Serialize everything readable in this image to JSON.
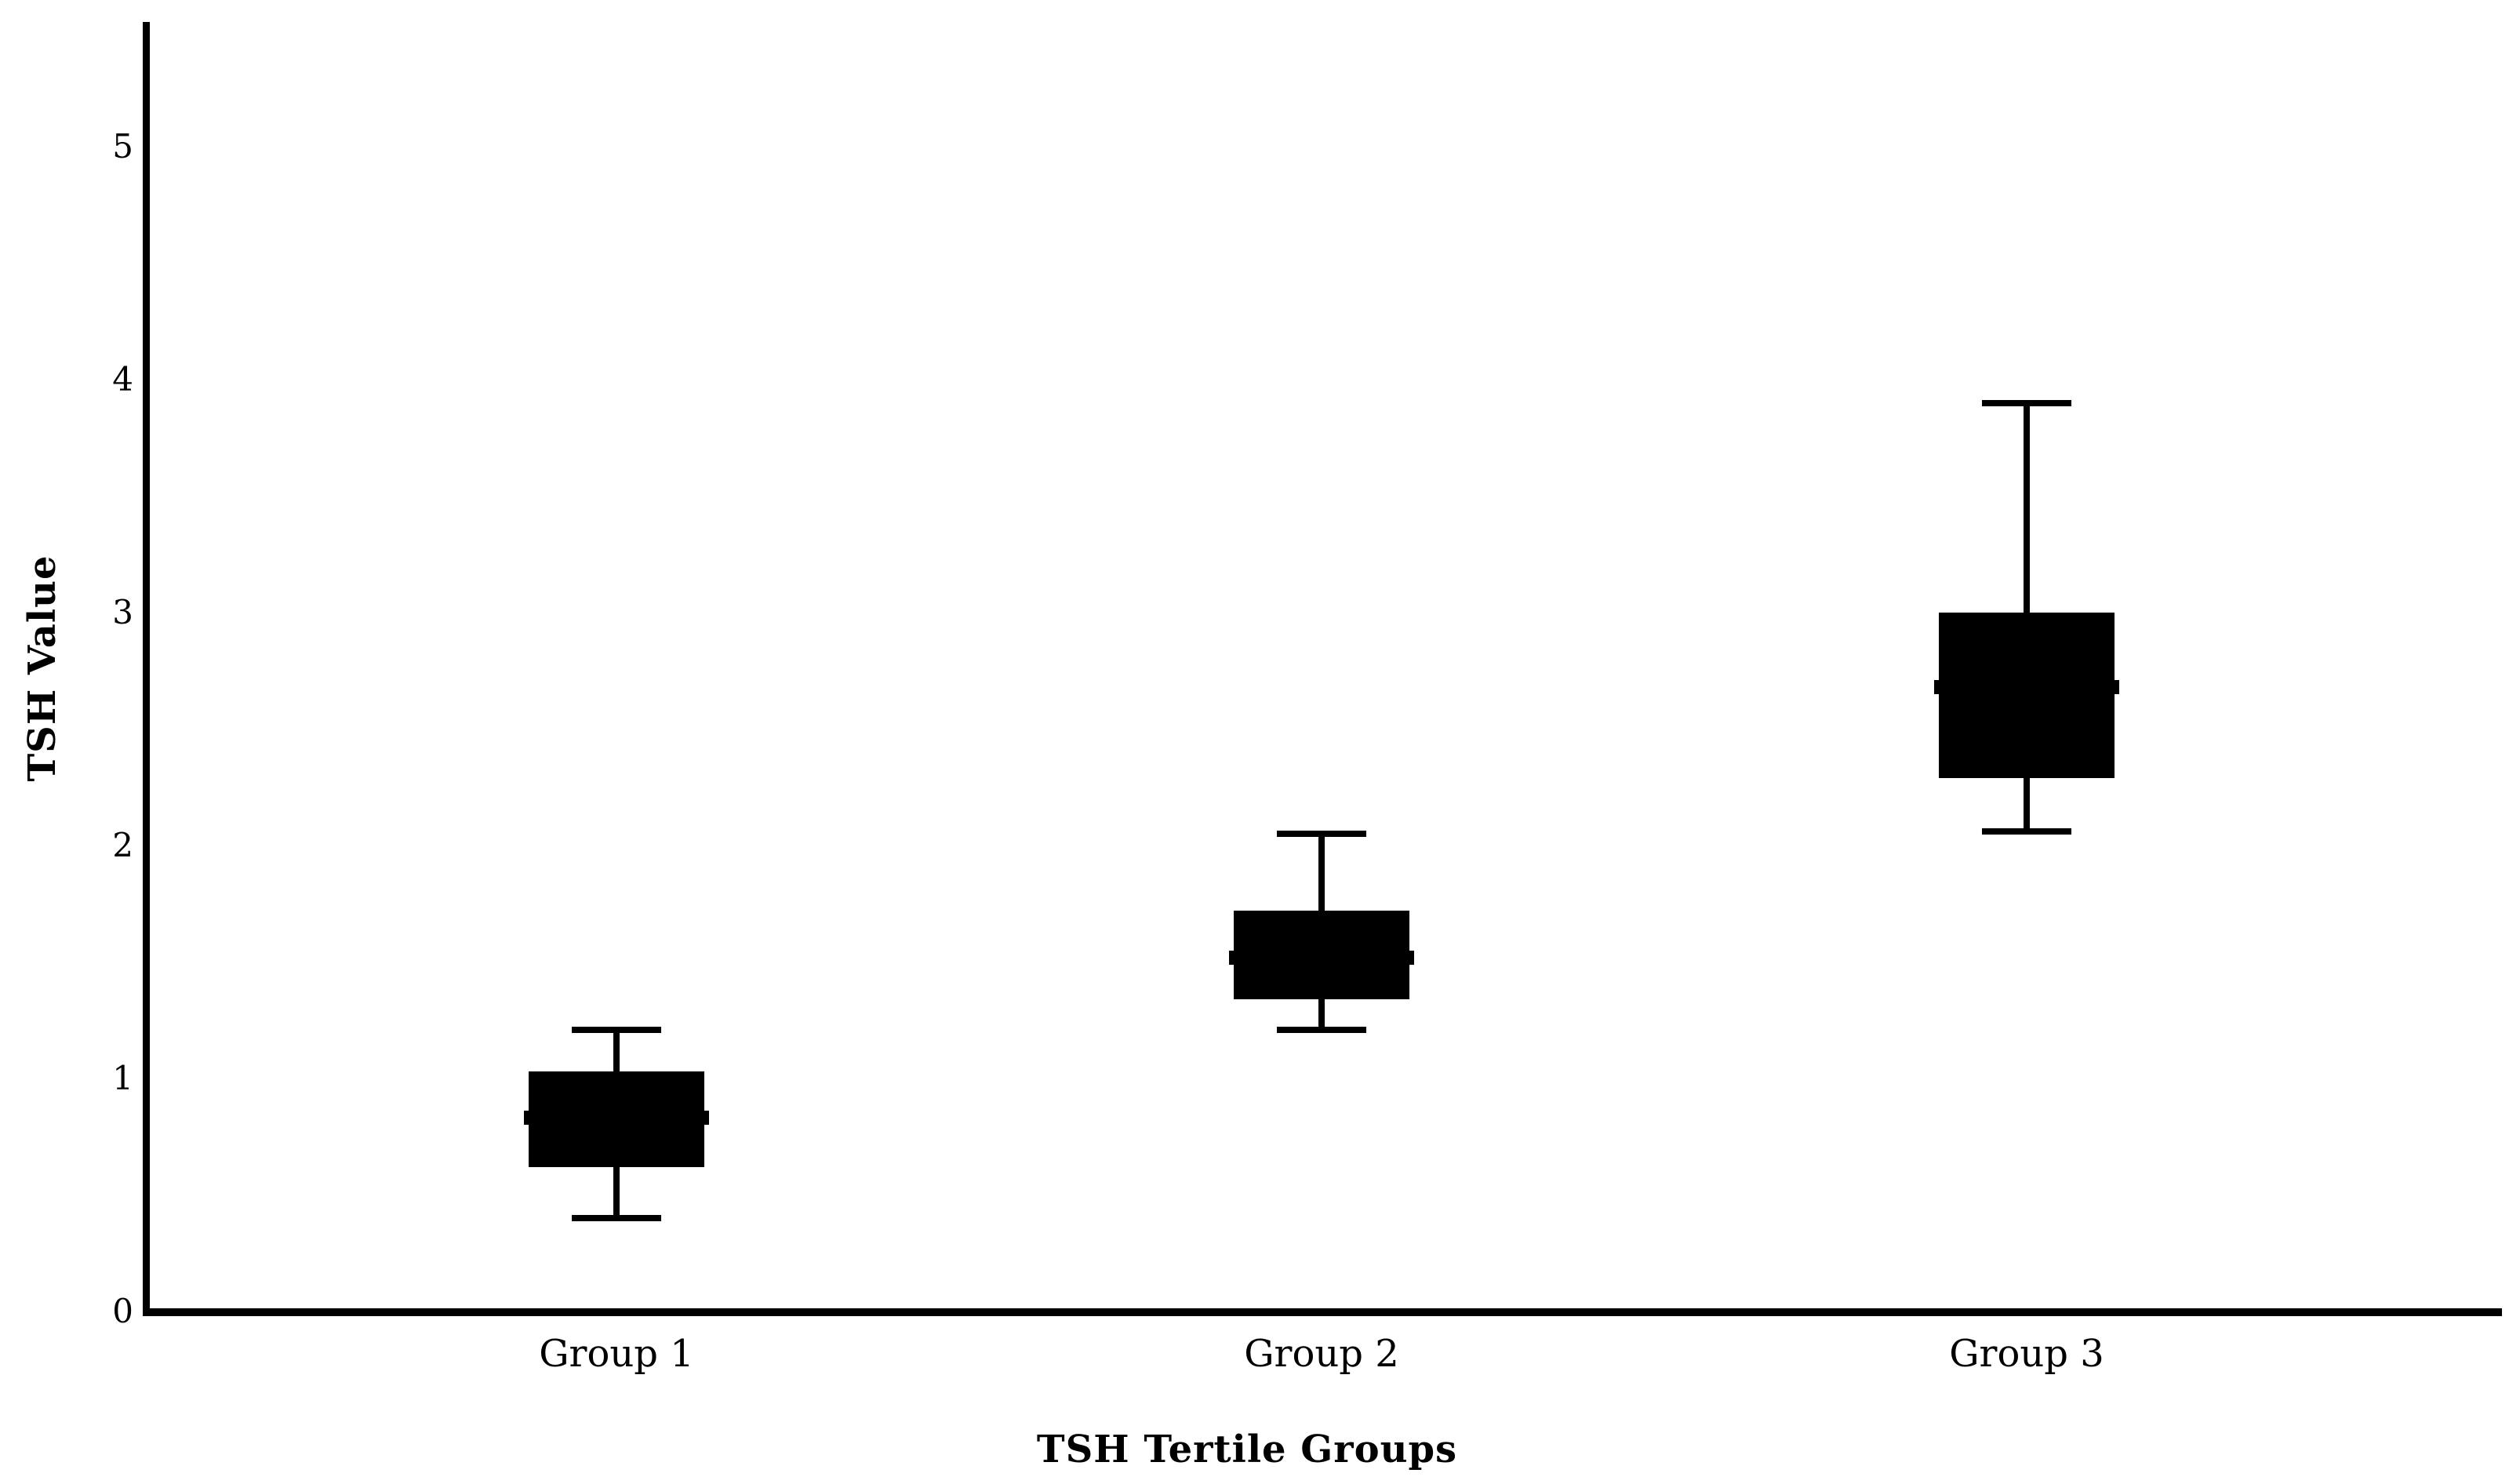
{
  "figure": {
    "y_axis_title": "TSH Value",
    "x_axis_title": "TSH Tertile Groups"
  },
  "chart_data": {
    "type": "box",
    "title": "",
    "xlabel": "TSH Tertile Groups",
    "ylabel": "TSH Value",
    "categories": [
      "Group 1",
      "Group 2",
      "Group 3"
    ],
    "y_ticks": [
      0,
      1,
      2,
      3,
      4,
      5
    ],
    "ylim": [
      0,
      5.5
    ],
    "grid": false,
    "legend": false,
    "box_fill": "#000000",
    "line_color": "#000000",
    "background": "#ffffff",
    "series": [
      {
        "name": "Group 1",
        "whisker_low": 0.4,
        "q1": 0.62,
        "median": 0.83,
        "q3": 1.03,
        "whisker_high": 1.21
      },
      {
        "name": "Group 2",
        "whisker_low": 1.21,
        "q1": 1.34,
        "median": 1.52,
        "q3": 1.72,
        "whisker_high": 2.05
      },
      {
        "name": "Group 3",
        "whisker_low": 2.06,
        "q1": 2.29,
        "median": 2.68,
        "q3": 3.0,
        "whisker_high": 3.9
      }
    ]
  }
}
